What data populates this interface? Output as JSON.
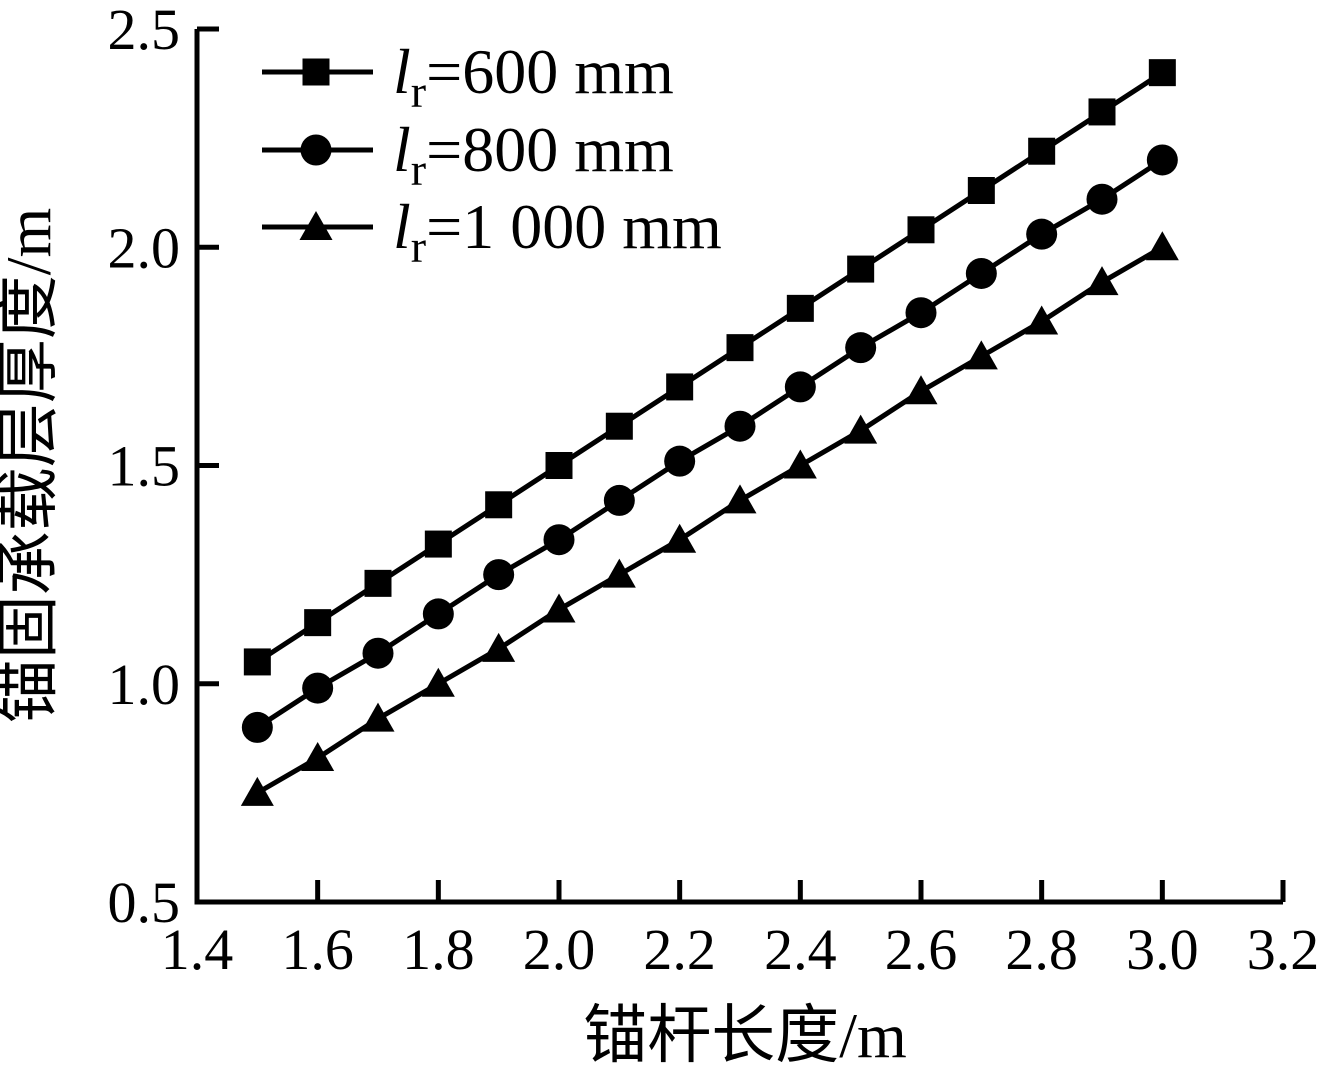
{
  "figure": {
    "background": "#ffffff",
    "ink_color": "#000000"
  },
  "chart_data": {
    "type": "line",
    "title": "",
    "xlabel": "锚杆长度/m",
    "ylabel": "锚固承载层厚度/m",
    "xlim": [
      1.4,
      3.2
    ],
    "ylim": [
      0.5,
      2.5
    ],
    "x_tick_labels": [
      "1.4",
      "1.6",
      "1.8",
      "2.0",
      "2.2",
      "2.4",
      "2.6",
      "2.8",
      "3.0",
      "3.2"
    ],
    "y_tick_labels": [
      "0.5",
      "1.0",
      "1.5",
      "2.0",
      "2.5"
    ],
    "x_ticks": [
      1.4,
      1.6,
      1.8,
      2.0,
      2.2,
      2.4,
      2.6,
      2.8,
      3.0,
      3.2
    ],
    "y_ticks": [
      0.5,
      1.0,
      1.5,
      2.0,
      2.5
    ],
    "grid": false,
    "legend_position": "upper-left-inside",
    "x": [
      1.5,
      1.6,
      1.7,
      1.8,
      1.9,
      2.0,
      2.1,
      2.2,
      2.3,
      2.4,
      2.5,
      2.6,
      2.7,
      2.8,
      2.9,
      3.0
    ],
    "series": [
      {
        "name": "lr-600",
        "marker": "square",
        "legend": {
          "var": "l",
          "sub": "r",
          "rest": "=600 mm"
        },
        "values": [
          1.05,
          1.14,
          1.23,
          1.32,
          1.41,
          1.5,
          1.59,
          1.68,
          1.77,
          1.86,
          1.95,
          2.04,
          2.13,
          2.22,
          2.31,
          2.4
        ]
      },
      {
        "name": "lr-800",
        "marker": "circle",
        "legend": {
          "var": "l",
          "sub": "r",
          "rest": "=800 mm"
        },
        "values": [
          0.9,
          0.99,
          1.07,
          1.16,
          1.25,
          1.33,
          1.42,
          1.51,
          1.59,
          1.68,
          1.77,
          1.85,
          1.94,
          2.03,
          2.11,
          2.2
        ]
      },
      {
        "name": "lr-1000",
        "marker": "triangle",
        "legend": {
          "var": "l",
          "sub": "r",
          "rest": "=1 000 mm"
        },
        "values": [
          0.75,
          0.83,
          0.92,
          1.0,
          1.08,
          1.17,
          1.25,
          1.33,
          1.42,
          1.5,
          1.58,
          1.67,
          1.75,
          1.83,
          1.92,
          2.0
        ]
      }
    ]
  }
}
